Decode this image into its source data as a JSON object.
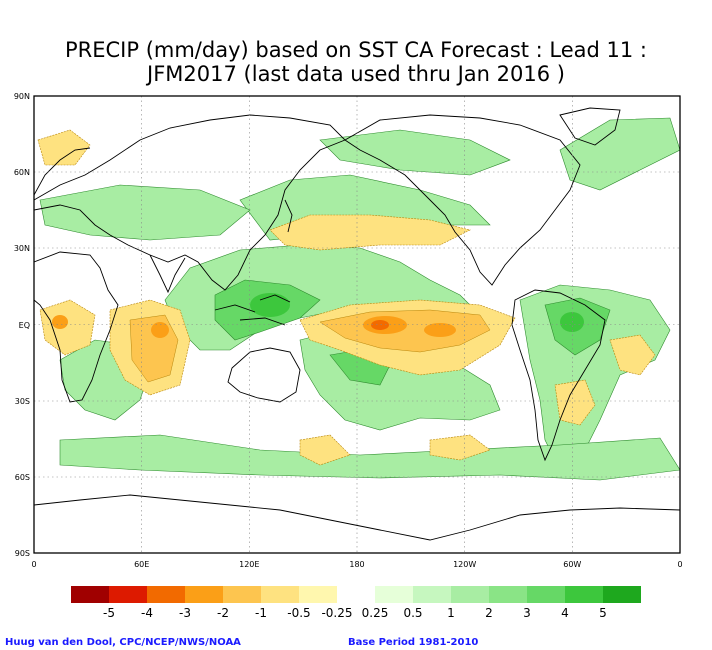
{
  "title": {
    "line1": "PRECIP (mm/day) based on SST CA Forecast : Lead 11 :",
    "line2": "JFM2017 (last data used thru Jan 2016 )"
  },
  "axes": {
    "lat_labels": [
      "90N",
      "60N",
      "30N",
      "EQ",
      "30S",
      "60S",
      "90S"
    ],
    "lon_labels": [
      "0",
      "60E",
      "120E",
      "180",
      "120W",
      "60W",
      "0"
    ]
  },
  "colorbar": {
    "colors": [
      "#a00000",
      "#dd1a00",
      "#f26a00",
      "#fb9f17",
      "#fdc54f",
      "#fee280",
      "#fff7ae",
      "#ffffff",
      "#e6ffd9",
      "#c6f7bf",
      "#a8eda3",
      "#8ae486",
      "#66d866",
      "#3dc73d",
      "#1ea81e"
    ],
    "labels": [
      "-5",
      "-4",
      "-3",
      "-2",
      "-1",
      "-0.5",
      "-0.25",
      "0.25",
      "0.5",
      "1",
      "2",
      "3",
      "4",
      "5"
    ]
  },
  "credits": {
    "left": "Huug van den Dool, CPC/NCEP/NWS/NOAA",
    "right": "Base Period 1981-2010"
  }
}
